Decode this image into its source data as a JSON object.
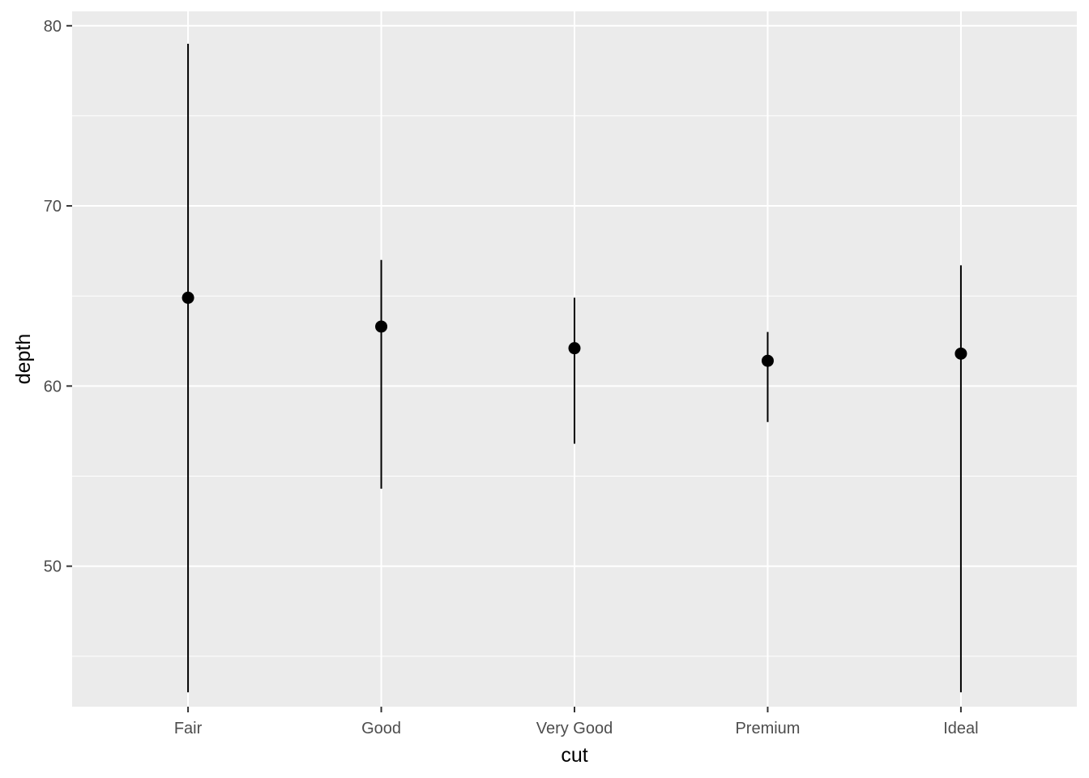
{
  "chart_data": {
    "type": "pointrange",
    "title": "",
    "xlabel": "cut",
    "ylabel": "depth",
    "categories": [
      "Fair",
      "Good",
      "Very Good",
      "Premium",
      "Ideal"
    ],
    "series": [
      {
        "points": [
          {
            "x": "Fair",
            "y": 64.9,
            "ymin": 43.0,
            "ymax": 79.0
          },
          {
            "x": "Good",
            "y": 63.3,
            "ymin": 54.3,
            "ymax": 67.0
          },
          {
            "x": "Very Good",
            "y": 62.1,
            "ymin": 56.8,
            "ymax": 64.9
          },
          {
            "x": "Premium",
            "y": 61.4,
            "ymin": 58.0,
            "ymax": 63.0
          },
          {
            "x": "Ideal",
            "y": 61.8,
            "ymin": 43.0,
            "ymax": 66.7
          }
        ]
      }
    ],
    "y_ticks": [
      "50",
      "60",
      "70",
      "80"
    ],
    "ylim": [
      42.2,
      80.8
    ],
    "grid": true,
    "legend": "none",
    "colors": {
      "panel": "#EBEBEB",
      "grid": "#FFFFFF",
      "marks": "#000000",
      "tick_text": "#4D4D4D",
      "axis_title": "#000000"
    }
  }
}
